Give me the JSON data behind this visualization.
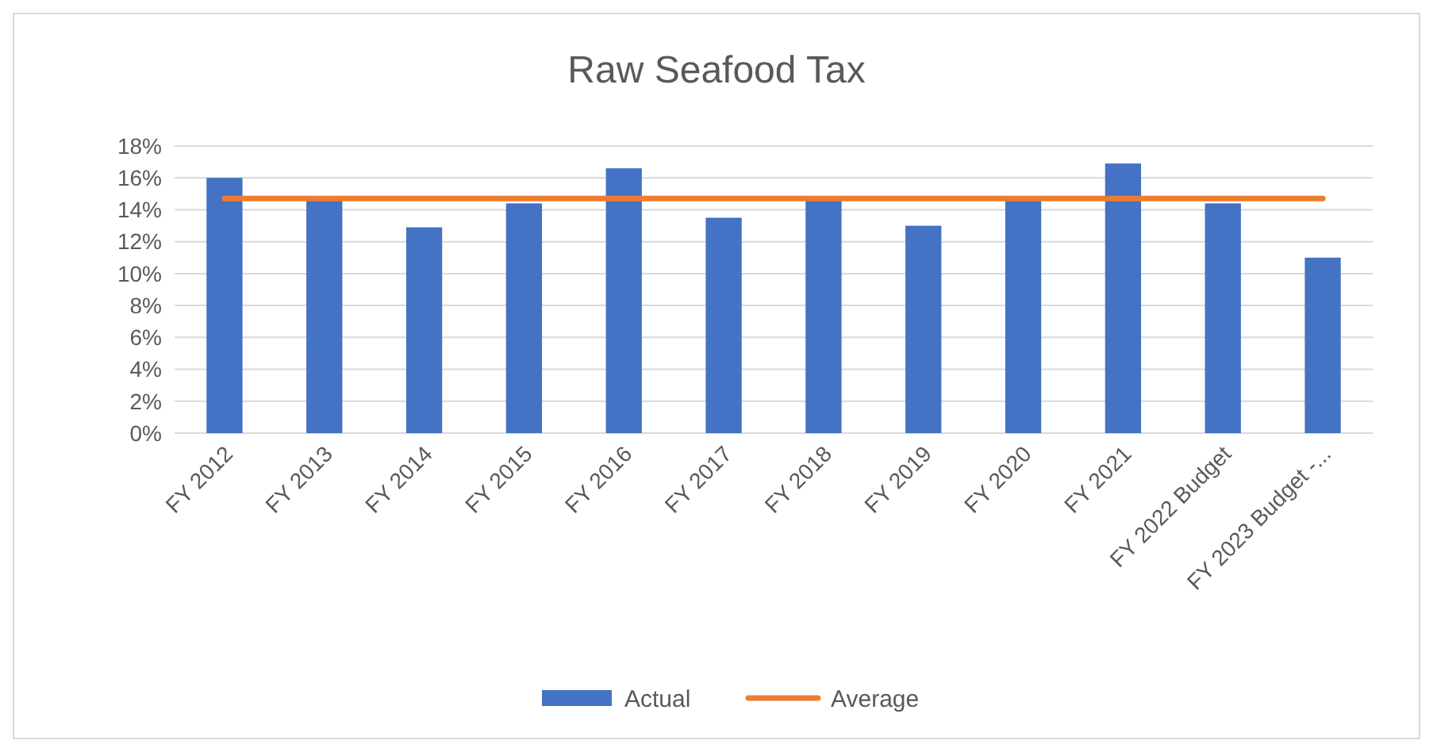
{
  "chart_data": {
    "type": "bar",
    "title": "Raw Seafood Tax",
    "categories": [
      "FY 2012",
      "FY 2013",
      "FY 2014",
      "FY 2015",
      "FY 2016",
      "FY 2017",
      "FY 2018",
      "FY 2019",
      "FY 2020",
      "FY 2021",
      "FY 2022 Budget",
      "FY 2023 Budget -..."
    ],
    "series": [
      {
        "name": "Actual",
        "color": "#4472c4",
        "values": [
          16.0,
          14.6,
          12.9,
          14.4,
          16.6,
          13.5,
          14.6,
          13.0,
          14.6,
          16.9,
          14.4,
          11.0
        ]
      },
      {
        "name": "Average",
        "type": "line",
        "color": "#ed7d31",
        "values": [
          14.7,
          14.7,
          14.7,
          14.7,
          14.7,
          14.7,
          14.7,
          14.7,
          14.7,
          14.7,
          14.7,
          14.7
        ]
      }
    ],
    "ylim": [
      0,
      18
    ],
    "yticks": [
      {
        "value": 0,
        "label": "0%"
      },
      {
        "value": 2,
        "label": "2%"
      },
      {
        "value": 4,
        "label": "4%"
      },
      {
        "value": 6,
        "label": "6%"
      },
      {
        "value": 8,
        "label": "8%"
      },
      {
        "value": 10,
        "label": "10%"
      },
      {
        "value": 12,
        "label": "12%"
      },
      {
        "value": 14,
        "label": "14%"
      },
      {
        "value": 16,
        "label": "16%"
      },
      {
        "value": 18,
        "label": "18%"
      }
    ],
    "grid": "y",
    "legend": "bottom",
    "marker": "none"
  }
}
